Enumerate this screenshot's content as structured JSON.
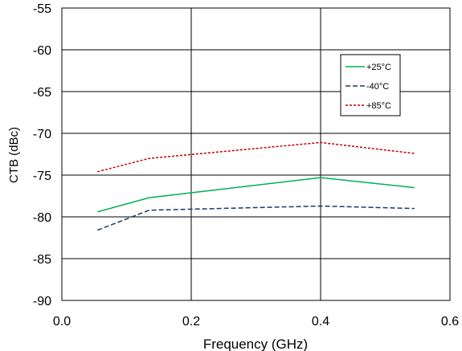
{
  "chart_data": {
    "type": "line",
    "title": "",
    "xlabel": "Frequency (GHz)",
    "ylabel": "CTB (dBc)",
    "xlim": [
      0.0,
      0.6
    ],
    "ylim": [
      -90,
      -55
    ],
    "x_ticks": [
      "0.0",
      "0.2",
      "0.4",
      "0.6"
    ],
    "x_tick_values": [
      0.0,
      0.2,
      0.4,
      0.6
    ],
    "y_ticks": [
      "-90",
      "-85",
      "-80",
      "-75",
      "-70",
      "-65",
      "-60",
      "-55"
    ],
    "y_tick_values": [
      -90,
      -85,
      -80,
      -75,
      -70,
      -65,
      -60,
      -55
    ],
    "grid": true,
    "legend_position": "top-right",
    "series": [
      {
        "name": "+25°C",
        "color": "#00b050",
        "dash": "solid",
        "x": [
          0.055,
          0.135,
          0.4,
          0.545
        ],
        "y": [
          -79.4,
          -77.7,
          -75.3,
          -76.5
        ]
      },
      {
        "name": "-40°C",
        "color": "#1f3864",
        "dash": "dashed",
        "x": [
          0.055,
          0.135,
          0.4,
          0.545
        ],
        "y": [
          -81.6,
          -79.2,
          -78.7,
          -79.0
        ]
      },
      {
        "name": "+85°C",
        "color": "#c00000",
        "dash": "dotted",
        "x": [
          0.055,
          0.135,
          0.4,
          0.545
        ],
        "y": [
          -74.6,
          -73.0,
          -71.1,
          -72.4
        ]
      }
    ]
  }
}
